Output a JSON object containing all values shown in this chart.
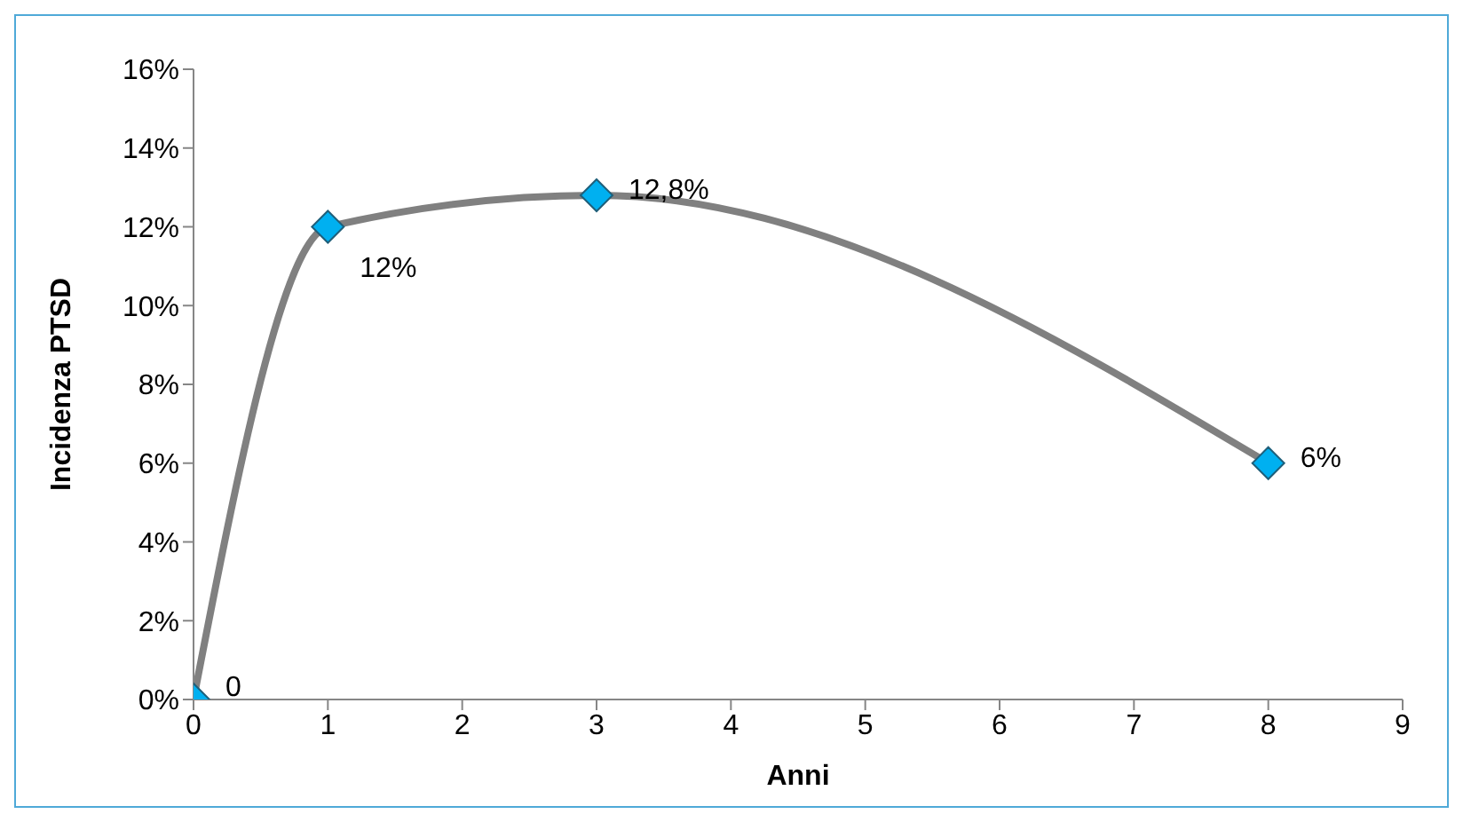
{
  "chart_data": {
    "type": "line",
    "xlabel": "Anni",
    "ylabel": "Incidenza PTSD",
    "x": [
      0,
      1,
      3,
      8
    ],
    "series": [
      {
        "color": "#808080",
        "colors": [
          "#00b0f0",
          "#00b0f0",
          "#00b0f0",
          "#00b0f0"
        ],
        "values": [
          0,
          12,
          12.8,
          6
        ],
        "value_labels": [
          "0",
          "12%",
          "12,8%",
          "6%"
        ]
      }
    ],
    "xlim": [
      0,
      9
    ],
    "xticks": [
      0,
      1,
      2,
      3,
      4,
      5,
      6,
      7,
      8,
      9
    ],
    "ylim": [
      0,
      16
    ],
    "yticks": [
      {
        "value": 0,
        "label": "0%"
      },
      {
        "value": 2,
        "label": "2%"
      },
      {
        "value": 4,
        "label": "4%"
      },
      {
        "value": 6,
        "label": "6%"
      },
      {
        "value": 8,
        "label": "8%"
      },
      {
        "value": 10,
        "label": "10%"
      },
      {
        "value": 12,
        "label": "12%"
      },
      {
        "value": 14,
        "label": "14%"
      },
      {
        "value": 16,
        "label": "16%"
      }
    ],
    "grid": false,
    "legend": false,
    "marker": "diamond",
    "line_style": "solid"
  }
}
